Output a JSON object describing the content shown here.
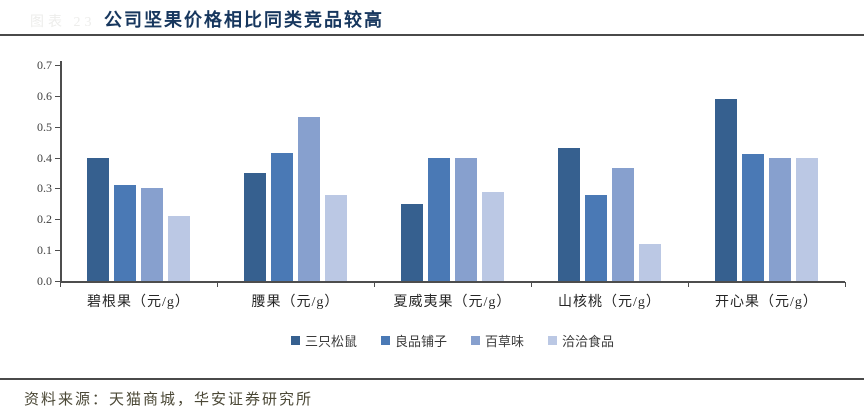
{
  "page": {
    "figure_label_faint": "图表 23",
    "title": "公司坚果价格相比同类竞品较高",
    "source": "资料来源：天猫商城，华安证券研究所"
  },
  "colors": {
    "title": "#17375E",
    "axis": "#4d4d4d",
    "series": [
      "#36608F",
      "#4A79B5",
      "#87A0CE",
      "#BBC8E4"
    ],
    "source_text": "#4b4836"
  },
  "chart_data": {
    "type": "bar",
    "title": "公司坚果价格相比同类竞品较高",
    "categories": [
      "碧根果（元/g）",
      "腰果（元/g）",
      "夏威夷果（元/g）",
      "山核桃（元/g）",
      "开心果（元/g）"
    ],
    "series": [
      {
        "name": "三只松鼠",
        "values": [
          0.4,
          0.35,
          0.25,
          0.43,
          0.59
        ]
      },
      {
        "name": "良品铺子",
        "values": [
          0.31,
          0.415,
          0.4,
          0.28,
          0.41
        ]
      },
      {
        "name": "百草味",
        "values": [
          0.3,
          0.53,
          0.4,
          0.365,
          0.4
        ]
      },
      {
        "name": "洽洽食品",
        "values": [
          0.21,
          0.28,
          0.29,
          0.12,
          0.4
        ]
      }
    ],
    "xlabel": "",
    "ylabel": "",
    "ylim": [
      0,
      0.7
    ],
    "ytick_step": 0.1,
    "ytick_format_decimals": 1,
    "grid": false,
    "legend_position": "bottom"
  }
}
